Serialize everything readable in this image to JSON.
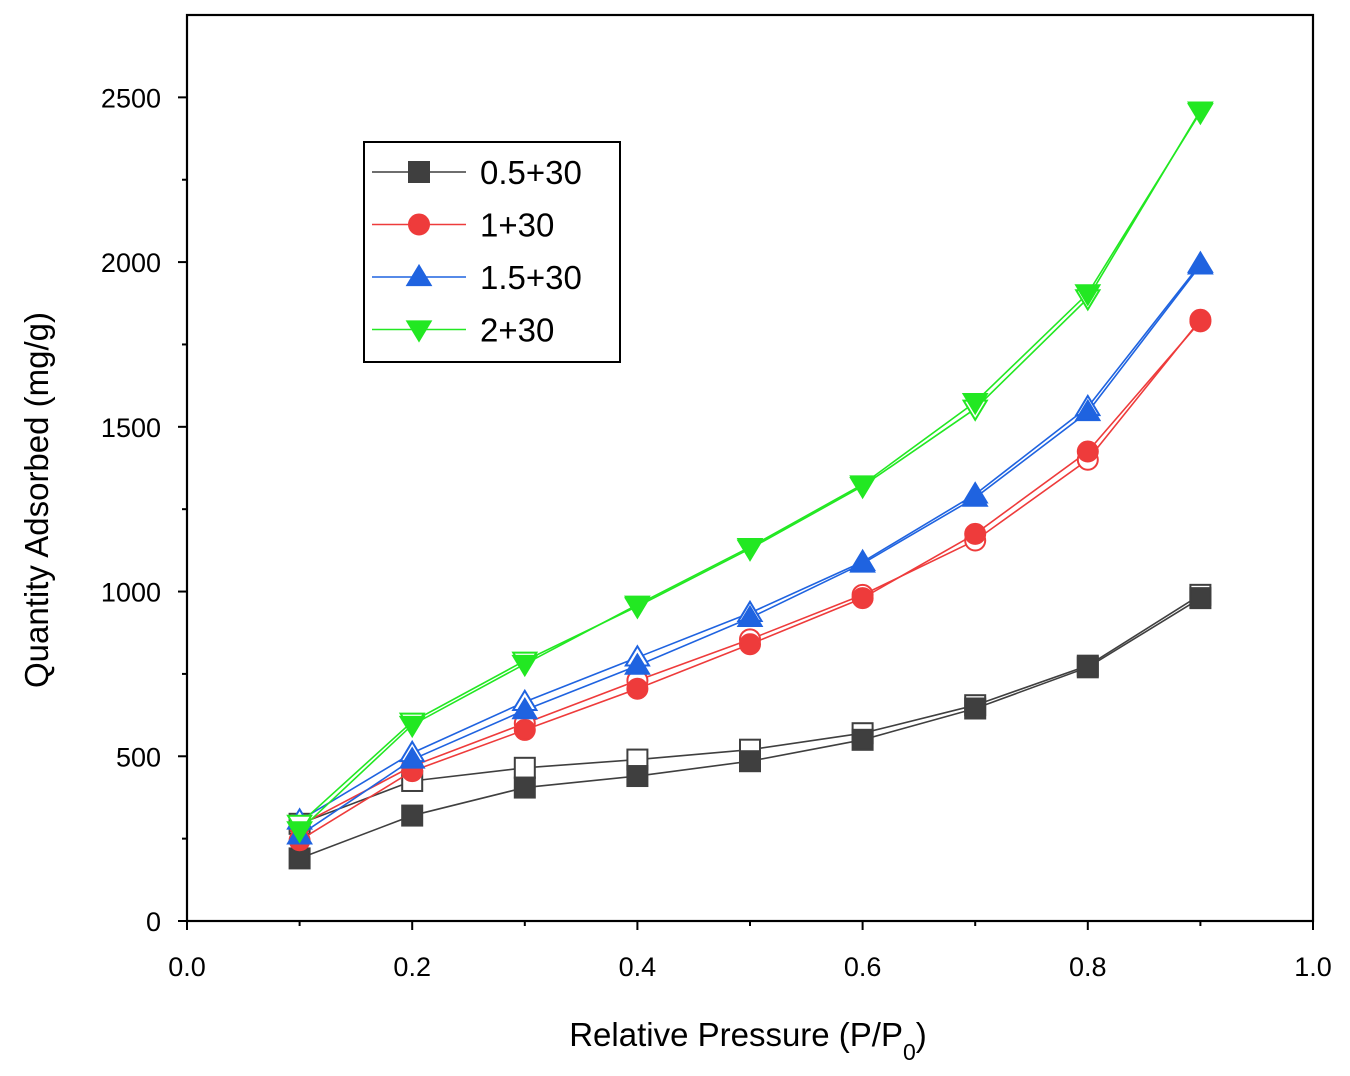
{
  "chart_data": {
    "type": "line",
    "xlabel_main": "Relative Pressure (P/P",
    "xlabel_sub": "0",
    "xlabel_close": ")",
    "ylabel": "Quantity Adsorbed (mg/g)",
    "xlim": [
      0.0,
      1.0
    ],
    "ylim": [
      0,
      2750
    ],
    "x_ticks": [
      "0.0",
      "0.2",
      "0.4",
      "0.6",
      "0.8",
      "1.0"
    ],
    "x_tick_values": [
      0.0,
      0.2,
      0.4,
      0.6,
      0.8,
      1.0
    ],
    "y_ticks": [
      "0",
      "500",
      "1000",
      "1500",
      "2000",
      "2500"
    ],
    "y_tick_values": [
      0,
      500,
      1000,
      1500,
      2000,
      2500
    ],
    "legend_position": "upper-left",
    "series": [
      {
        "name": "0.5+30",
        "color": "#3f3f3f",
        "marker": "square",
        "adsorption": {
          "x": [
            0.1,
            0.2,
            0.3,
            0.4,
            0.5,
            0.6,
            0.7,
            0.8,
            0.9
          ],
          "y": [
            190,
            320,
            405,
            440,
            485,
            550,
            645,
            770,
            980
          ]
        },
        "desorption": {
          "x": [
            0.9,
            0.8,
            0.7,
            0.6,
            0.5,
            0.4,
            0.3,
            0.2,
            0.1
          ],
          "y": [
            990,
            775,
            655,
            570,
            520,
            490,
            465,
            425,
            295
          ]
        }
      },
      {
        "name": "1+30",
        "color": "#ee3b3b",
        "marker": "circle",
        "adsorption": {
          "x": [
            0.1,
            0.2,
            0.3,
            0.4,
            0.5,
            0.6,
            0.7,
            0.8,
            0.9
          ],
          "y": [
            245,
            455,
            580,
            705,
            840,
            980,
            1175,
            1425,
            1820
          ]
        },
        "desorption": {
          "x": [
            0.9,
            0.8,
            0.7,
            0.6,
            0.5,
            0.4,
            0.3,
            0.2,
            0.1
          ],
          "y": [
            1825,
            1400,
            1155,
            990,
            855,
            730,
            600,
            470,
            290
          ]
        }
      },
      {
        "name": "1.5+30",
        "color": "#1f63e0",
        "marker": "triangle-up",
        "adsorption": {
          "x": [
            0.1,
            0.2,
            0.3,
            0.4,
            0.5,
            0.6,
            0.7,
            0.8,
            0.9
          ],
          "y": [
            260,
            490,
            640,
            775,
            920,
            1085,
            1285,
            1545,
            1990
          ]
        },
        "desorption": {
          "x": [
            0.9,
            0.8,
            0.7,
            0.6,
            0.5,
            0.4,
            0.3,
            0.2,
            0.1
          ],
          "y": [
            1995,
            1560,
            1295,
            1090,
            935,
            800,
            665,
            510,
            305
          ]
        }
      },
      {
        "name": "2+30",
        "color": "#22e822",
        "marker": "triangle-down",
        "adsorption": {
          "x": [
            0.1,
            0.2,
            0.3,
            0.4,
            0.5,
            0.6,
            0.7,
            0.8,
            0.9
          ],
          "y": [
            275,
            595,
            780,
            960,
            1135,
            1325,
            1575,
            1905,
            2455
          ]
        },
        "desorption": {
          "x": [
            0.9,
            0.8,
            0.7,
            0.6,
            0.5,
            0.4,
            0.3,
            0.2,
            0.1
          ],
          "y": [
            2460,
            1890,
            1555,
            1320,
            1130,
            955,
            790,
            605,
            295
          ]
        }
      }
    ]
  }
}
